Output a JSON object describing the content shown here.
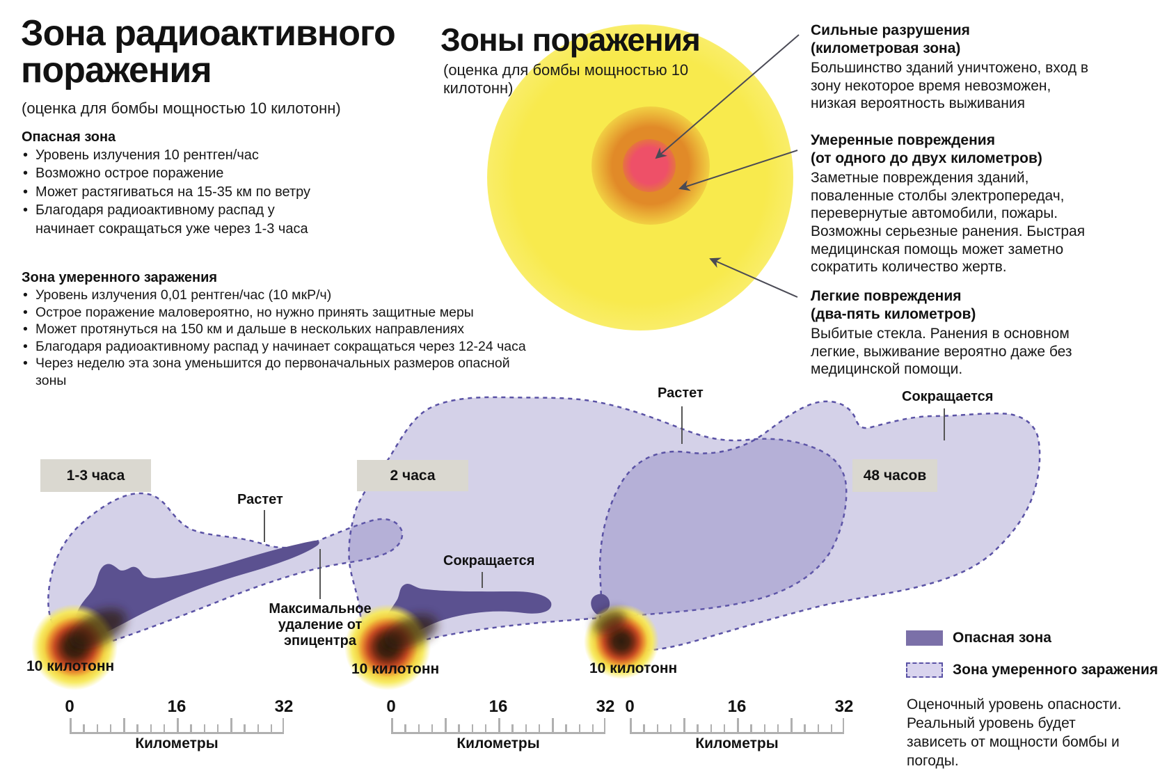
{
  "left_panel": {
    "title": "Зона радиоактивного поражения",
    "subtitle": "(оценка для бомбы мощностью 10 килотонн)",
    "danger_section": {
      "heading": "Опасная зона",
      "bullets": [
        "Уровень излучения 10 рентген/час",
        "Возможно острое поражение",
        "Может растягиваться на 15-35 км по ветру",
        "Благодаря радиоактивному распад у начинает сокращаться уже через 1-3 часа"
      ]
    },
    "moderate_section": {
      "heading": "Зона умеренного заражения",
      "bullets": [
        "Уровень излучения 0,01 рентген/час (10 мкР/ч)",
        "Острое поражение маловероятно, но нужно принять защитные меры",
        "Может протянуться на 150 км и дальше в нескольких направлениях",
        "Благодаря радиоактивному распад у начинает сокращаться через 12-24 часа",
        "Через неделю эта зона уменьшится до первоначальных размеров опасной зоны"
      ]
    }
  },
  "blast_diagram": {
    "title": "Зоны поражения",
    "subtitle": "(оценка для бомбы мощностью 10 килотонн)",
    "zones": [
      {
        "label": "Сильные разрушения",
        "sublabel": "(километровая зона)",
        "description": "Большинство зданий уничтожено, вход в зону некоторое время невозможен, низкая вероятность выживания",
        "color": "#ee5068"
      },
      {
        "label": "Умеренные повреждения",
        "sublabel": "(от одного до двух километров)",
        "description": "Заметные повреждения зданий, поваленные столбы электропередач, перевернутые автомобили, пожары. Возможны серьезные ранения. Быстрая медицинская помощь может заметно сократить количество жертв.",
        "color": "#e18a28"
      },
      {
        "label": "Легкие повреждения",
        "sublabel": "(два-пять километров)",
        "description": "Выбитые стекла. Ранения в основном легкие, выживание вероятно даже без медицинской помощи.",
        "color": "#f8ea4d"
      }
    ]
  },
  "fallout_maps": [
    {
      "time_label": "1-3 часа",
      "yield_label": "10 килотонн",
      "grow_label": "Растет",
      "max_distance_label": "Максимальное удаление от эпицентра"
    },
    {
      "time_label": "2 часа",
      "yield_label": "10 килотонн",
      "shrink_label": "Сокращается",
      "grow_label": "Растет"
    },
    {
      "time_label": "48 часов",
      "yield_label": "10 килотонн",
      "shrink_label": "Сокращается"
    }
  ],
  "scale": {
    "ticks": [
      "0",
      "16",
      "32"
    ],
    "unit_label": "Километры",
    "tick_step_km": 2,
    "major_step_km": 8,
    "range_km": [
      0,
      32
    ]
  },
  "legend": {
    "items": [
      {
        "label": "Опасная зона",
        "color": "#7b70a8",
        "style": "solid"
      },
      {
        "label": "Зона умеренного заражения",
        "color": "#d9d4ee",
        "style": "dashed"
      }
    ],
    "note": "Оценочный уровень опасности. Реальный уровень будет зависеть от мощности бомбы и погоды."
  },
  "colors": {
    "danger_plume": "#5b5190",
    "moderate_zone_fill": "rgba(108,97,175,0.29)",
    "zone_border": "#5a52a5",
    "badge_background": "#dad8d0",
    "blast_light": "#f8ea4d",
    "blast_moderate": "#e18a28",
    "blast_severe": "#ee5068"
  }
}
